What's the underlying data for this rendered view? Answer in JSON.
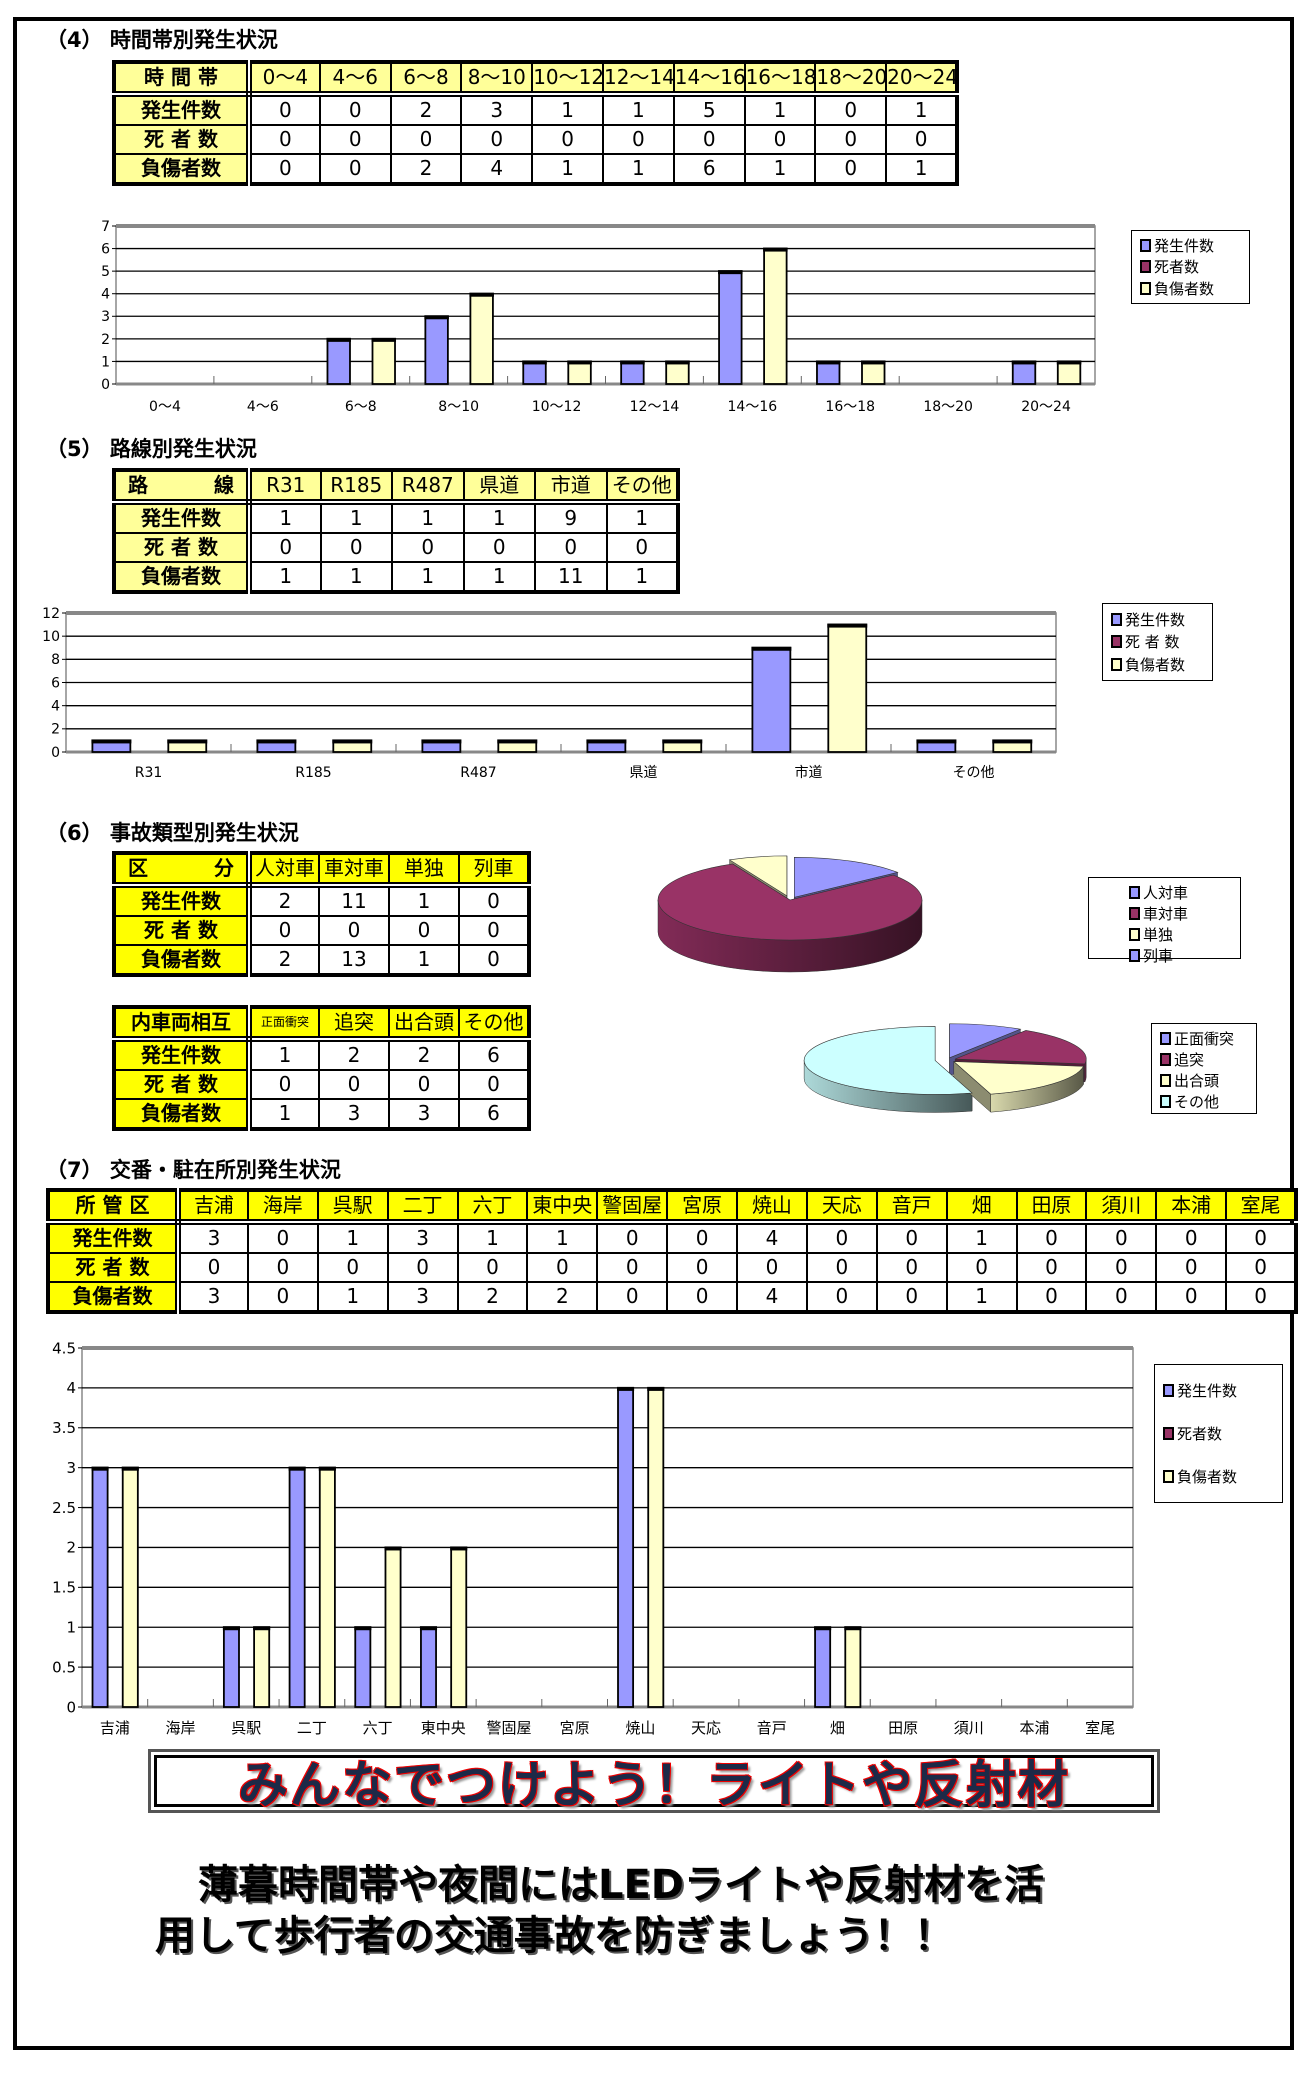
{
  "section4": {
    "title": "（4） 時間帯別発生状況",
    "table": {
      "header": [
        "時 間 帯",
        "0～4",
        "4～6",
        "6～8",
        "8～10",
        "10～12",
        "12～14",
        "14～16",
        "16～18",
        "18～20",
        "20～24"
      ],
      "rows": [
        [
          "発生件数",
          "0",
          "0",
          "2",
          "3",
          "1",
          "1",
          "5",
          "1",
          "0",
          "1"
        ],
        [
          "死 者 数",
          "0",
          "0",
          "0",
          "0",
          "0",
          "0",
          "0",
          "0",
          "0",
          "0"
        ],
        [
          "負傷者数",
          "0",
          "0",
          "2",
          "4",
          "1",
          "1",
          "6",
          "1",
          "0",
          "1"
        ]
      ]
    }
  },
  "section5": {
    "title": "（5） 路線別発生状況",
    "table": {
      "header": [
        "路　　線",
        "R31",
        "R185",
        "R487",
        "県道",
        "市道",
        "その他"
      ],
      "rows": [
        [
          "発生件数",
          "1",
          "1",
          "1",
          "1",
          "9",
          "1"
        ],
        [
          "死 者 数",
          "0",
          "0",
          "0",
          "0",
          "0",
          "0"
        ],
        [
          "負傷者数",
          "1",
          "1",
          "1",
          "1",
          "11",
          "1"
        ]
      ]
    }
  },
  "section6": {
    "title": "（6） 事故類型別発生状況",
    "table": {
      "header": [
        "区　　分",
        "人対車",
        "車対車",
        "単独",
        "列車"
      ],
      "rows": [
        [
          "発生件数",
          "2",
          "11",
          "1",
          "0"
        ],
        [
          "死 者 数",
          "0",
          "0",
          "0",
          "0"
        ],
        [
          "負傷者数",
          "2",
          "13",
          "1",
          "0"
        ]
      ]
    },
    "table2": {
      "header": [
        "内車両相互",
        "正面衝突",
        "追突",
        "出合頭",
        "その他"
      ],
      "rows": [
        [
          "発生件数",
          "1",
          "2",
          "2",
          "6"
        ],
        [
          "死 者 数",
          "0",
          "0",
          "0",
          "0"
        ],
        [
          "負傷者数",
          "1",
          "3",
          "3",
          "6"
        ]
      ]
    }
  },
  "section7": {
    "title": "（7） 交番・駐在所別発生状況",
    "table": {
      "header": [
        "所 管 区",
        "吉浦",
        "海岸",
        "呉駅",
        "二丁",
        "六丁",
        "東中央",
        "警固屋",
        "宮原",
        "焼山",
        "天応",
        "音戸",
        "畑",
        "田原",
        "須川",
        "本浦",
        "室尾"
      ],
      "rows": [
        [
          "発生件数",
          "3",
          "0",
          "1",
          "3",
          "1",
          "1",
          "0",
          "0",
          "4",
          "0",
          "0",
          "1",
          "0",
          "0",
          "0",
          "0"
        ],
        [
          "死 者 数",
          "0",
          "0",
          "0",
          "0",
          "0",
          "0",
          "0",
          "0",
          "0",
          "0",
          "0",
          "0",
          "0",
          "0",
          "0",
          "0"
        ],
        [
          "負傷者数",
          "3",
          "0",
          "1",
          "3",
          "2",
          "2",
          "0",
          "0",
          "4",
          "0",
          "0",
          "1",
          "0",
          "0",
          "0",
          "0"
        ]
      ]
    }
  },
  "colors": {
    "series1": "#9999ff",
    "series2": "#993366",
    "series3": "#ffffcc",
    "series4": "#ccffff",
    "header_pale": "#ffff99",
    "header_bright": "#ffff00"
  },
  "chart_data": [
    {
      "type": "bar",
      "categories": [
        "0～4",
        "4～6",
        "6～8",
        "8～10",
        "10～12",
        "12～14",
        "14～16",
        "16～18",
        "18～20",
        "20～24"
      ],
      "series": [
        {
          "name": "発生件数",
          "values": [
            0,
            0,
            2,
            3,
            1,
            1,
            5,
            1,
            0,
            1
          ]
        },
        {
          "name": "死者数",
          "values": [
            0,
            0,
            0,
            0,
            0,
            0,
            0,
            0,
            0,
            0
          ]
        },
        {
          "name": "負傷者数",
          "values": [
            0,
            0,
            2,
            4,
            1,
            1,
            6,
            1,
            0,
            1
          ]
        }
      ],
      "ylim": [
        0,
        7
      ],
      "yticks": [
        "0",
        "1",
        "2",
        "3",
        "4",
        "5",
        "6",
        "7"
      ],
      "grid": true,
      "legend": "right"
    },
    {
      "type": "bar",
      "categories": [
        "R31",
        "R185",
        "R487",
        "県道",
        "市道",
        "その他"
      ],
      "series": [
        {
          "name": "発生件数",
          "values": [
            1,
            1,
            1,
            1,
            9,
            1
          ]
        },
        {
          "name": "死 者 数",
          "values": [
            0,
            0,
            0,
            0,
            0,
            0
          ]
        },
        {
          "name": "負傷者数",
          "values": [
            1,
            1,
            1,
            1,
            11,
            1
          ]
        }
      ],
      "ylim": [
        0,
        12
      ],
      "yticks": [
        "0",
        "2",
        "4",
        "6",
        "8",
        "10",
        "12"
      ],
      "grid": true,
      "legend": "right"
    },
    {
      "type": "pie",
      "categories": [
        "人対車",
        "車対車",
        "単独",
        "列車"
      ],
      "values": [
        2,
        11,
        1,
        0
      ],
      "colors": [
        "#9999ff",
        "#993366",
        "#ffffcc",
        "#9999ff"
      ],
      "legend": "right",
      "style": "3d exploded"
    },
    {
      "type": "pie",
      "categories": [
        "正面衝突",
        "追突",
        "出合頭",
        "その他"
      ],
      "values": [
        1,
        2,
        2,
        6
      ],
      "colors": [
        "#9999ff",
        "#993366",
        "#ffffcc",
        "#ccffff"
      ],
      "legend": "right",
      "style": "3d exploded"
    },
    {
      "type": "bar",
      "categories": [
        "吉浦",
        "海岸",
        "呉駅",
        "二丁",
        "六丁",
        "東中央",
        "警固屋",
        "宮原",
        "焼山",
        "天応",
        "音戸",
        "畑",
        "田原",
        "須川",
        "本浦",
        "室尾"
      ],
      "series": [
        {
          "name": "発生件数",
          "values": [
            3,
            0,
            1,
            3,
            1,
            1,
            0,
            0,
            4,
            0,
            0,
            1,
            0,
            0,
            0,
            0
          ]
        },
        {
          "name": "死者数",
          "values": [
            0,
            0,
            0,
            0,
            0,
            0,
            0,
            0,
            0,
            0,
            0,
            0,
            0,
            0,
            0,
            0
          ]
        },
        {
          "name": "負傷者数",
          "values": [
            3,
            0,
            1,
            3,
            2,
            2,
            0,
            0,
            4,
            0,
            0,
            1,
            0,
            0,
            0,
            0
          ]
        }
      ],
      "ylim": [
        0,
        4.5
      ],
      "yticks": [
        "0",
        "0.5",
        "1",
        "1.5",
        "2",
        "2.5",
        "3",
        "3.5",
        "4",
        "4.5"
      ],
      "grid": true,
      "legend": "right"
    }
  ],
  "banner": "みんなでつけよう！ライトや反射材",
  "message": {
    "line1": "薄暮時間帯や夜間にはLEDライトや反射材を活",
    "line2": "用して歩行者の交通事故を防ぎましょう！！"
  }
}
